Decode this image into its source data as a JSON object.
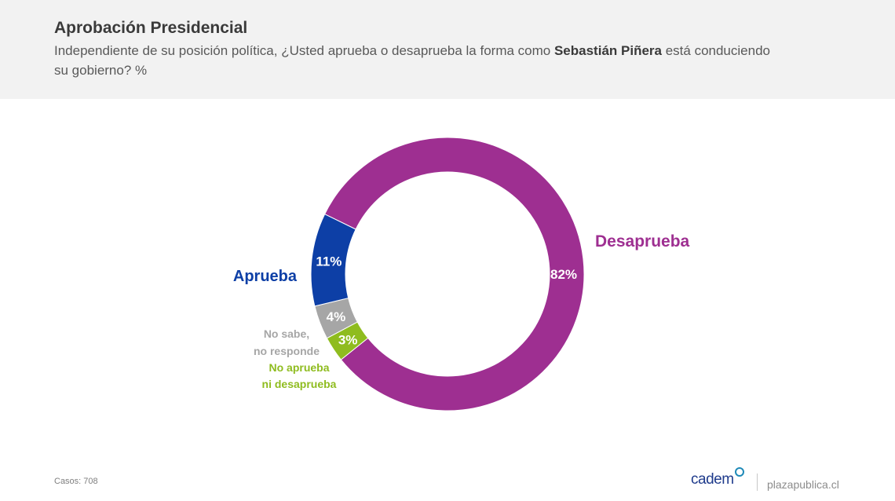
{
  "header": {
    "title": "Aprobación Presidencial",
    "subtitle_pre": "Independiente de su posición política, ¿Usted aprueba o desaprueba la forma como ",
    "subtitle_bold": "Sebastián Piñera",
    "subtitle_post": " está conduciendo su gobierno? %"
  },
  "chart_data": {
    "type": "pie",
    "donut": true,
    "slices": [
      {
        "name": "Desaprueba",
        "label_lines": [
          "Desaprueba"
        ],
        "value": 82,
        "value_label": "82%",
        "color": "#9e2f91",
        "label_color": "#9e2f91"
      },
      {
        "name": "No aprueba ni desaprueba",
        "label_lines": [
          "No aprueba",
          "ni desaprueba"
        ],
        "value": 3,
        "value_label": "3%",
        "color": "#8fbc1f",
        "label_color": "#8fbc1f"
      },
      {
        "name": "No sabe, no responde",
        "label_lines": [
          "No sabe,",
          "no responde"
        ],
        "value": 4,
        "value_label": "4%",
        "color": "#a6a6a6",
        "label_color": "#a6a6a6"
      },
      {
        "name": "Aprueba",
        "label_lines": [
          "Aprueba"
        ],
        "value": 11,
        "value_label": "11%",
        "color": "#0d3fa6",
        "label_color": "#0d3fa6"
      }
    ],
    "legend": "none"
  },
  "footer": {
    "casos": "Casos: 708",
    "brand": "cadem",
    "site": "plazapublica.cl"
  }
}
